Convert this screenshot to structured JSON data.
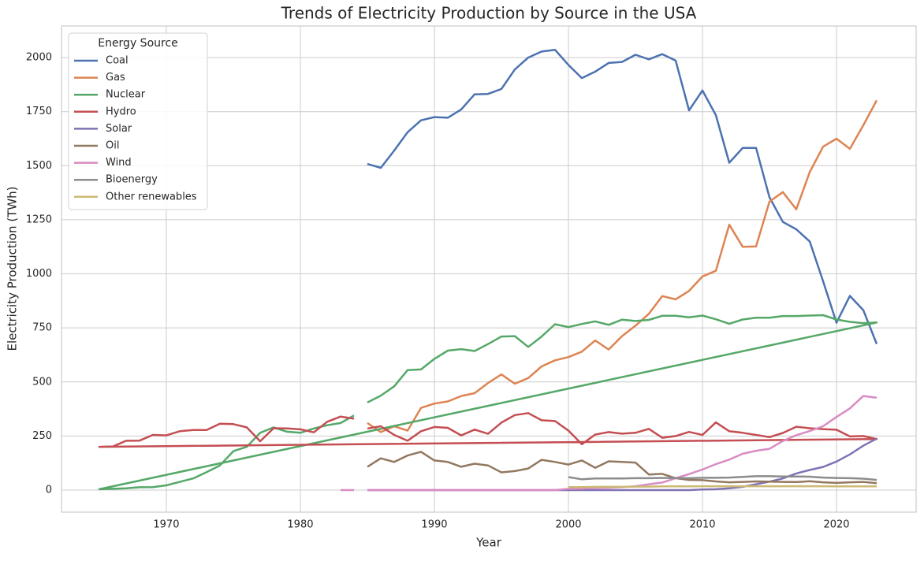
{
  "chart_data": {
    "type": "line",
    "title": "Trends of Electricity Production by Source in the USA",
    "x_label": "Year",
    "y_label": "Electricity Production (TWh)",
    "legend_title": "Energy Source",
    "legend_position": "upper left",
    "grid": true,
    "xlim": [
      1962.18,
      2025.94
    ],
    "ylim": [
      -102,
      2146
    ],
    "xticks": [
      1970,
      1980,
      1990,
      2000,
      2010,
      2020
    ],
    "yticks": [
      0,
      250,
      500,
      750,
      1000,
      1250,
      1500,
      1750,
      2000
    ],
    "x": [
      1985,
      1986,
      1987,
      1988,
      1989,
      1990,
      1991,
      1992,
      1993,
      1994,
      1995,
      1996,
      1997,
      1998,
      1999,
      2000,
      2001,
      2002,
      2003,
      2004,
      2005,
      2006,
      2007,
      2008,
      2009,
      2010,
      2011,
      2012,
      2013,
      2014,
      2015,
      2016,
      2017,
      2018,
      2019,
      2020,
      2021,
      2022,
      2023,
      1965,
      1966,
      1967,
      1968,
      1969,
      1970,
      1971,
      1972,
      1973,
      1974,
      1975,
      1976,
      1977,
      1978,
      1979,
      1980,
      1981,
      1982,
      1983,
      1984
    ],
    "series": [
      {
        "name": "Coal",
        "color": "#4c72b0",
        "values": [
          1508,
          1490,
          1570,
          1655,
          1710,
          1725,
          1722,
          1760,
          1830,
          1832,
          1855,
          1945,
          2000,
          2028,
          2036,
          1966,
          1905,
          1935,
          1975,
          1980,
          2013,
          1992,
          2016,
          1986,
          1756,
          1848,
          1734,
          1514,
          1582,
          1582,
          1354,
          1240,
          1206,
          1150,
          966,
          774,
          898,
          832,
          676,
          null,
          null,
          null,
          null,
          null,
          null,
          null,
          null,
          null,
          null,
          null,
          null,
          null,
          null,
          null,
          null,
          null,
          null,
          null,
          null
        ]
      },
      {
        "name": "Gas",
        "color": "#dd8452",
        "values": [
          310,
          268,
          295,
          275,
          380,
          400,
          410,
          435,
          448,
          495,
          535,
          492,
          518,
          572,
          600,
          615,
          640,
          692,
          650,
          712,
          760,
          815,
          897,
          882,
          921,
          988,
          1014,
          1227,
          1125,
          1127,
          1334,
          1378,
          1298,
          1470,
          1588,
          1625,
          1578,
          1687,
          1802,
          null,
          null,
          null,
          null,
          null,
          null,
          null,
          null,
          null,
          null,
          null,
          null,
          null,
          null,
          null,
          null,
          null,
          null,
          null,
          null
        ]
      },
      {
        "name": "Nuclear",
        "color": "#55a868",
        "values": [
          405,
          437,
          480,
          555,
          558,
          607,
          645,
          652,
          643,
          675,
          710,
          712,
          662,
          710,
          767,
          754,
          768,
          780,
          764,
          788,
          782,
          787,
          806,
          806,
          799,
          807,
          790,
          769,
          789,
          797,
          797,
          805,
          805,
          807,
          809,
          789,
          778,
          772,
          775,
          4,
          6,
          8,
          13,
          14,
          22,
          38,
          54,
          83,
          114,
          180,
          200,
          265,
          290,
          270,
          265,
          285,
          300,
          310,
          345
        ]
      },
      {
        "name": "Hydro",
        "color": "#c44e52",
        "values": [
          285,
          295,
          255,
          228,
          272,
          292,
          288,
          253,
          280,
          260,
          312,
          347,
          356,
          323,
          319,
          275,
          212,
          257,
          268,
          261,
          265,
          283,
          242,
          250,
          269,
          255,
          313,
          272,
          265,
          255,
          245,
          264,
          293,
          286,
          282,
          279,
          248,
          250,
          236,
          200,
          201,
          228,
          229,
          255,
          253,
          272,
          278,
          278,
          307,
          305,
          290,
          226,
          286,
          285,
          281,
          267,
          316,
          340,
          330
        ]
      },
      {
        "name": "Solar",
        "color": "#8172b3",
        "values": [
          0,
          0,
          0,
          0,
          0,
          0,
          0,
          0,
          0,
          0,
          0,
          0,
          0,
          0,
          0,
          0,
          0,
          0,
          0,
          0,
          0,
          0,
          0,
          0,
          0,
          3,
          4,
          8,
          15,
          27,
          39,
          54,
          77,
          93,
          107,
          132,
          165,
          205,
          238,
          null,
          null,
          null,
          null,
          null,
          null,
          null,
          null,
          null,
          null,
          null,
          null,
          null,
          null,
          null,
          null,
          null,
          null,
          null,
          null
        ]
      },
      {
        "name": "Oil",
        "color": "#937860",
        "values": [
          108,
          147,
          130,
          160,
          177,
          137,
          130,
          108,
          122,
          114,
          82,
          88,
          100,
          140,
          130,
          118,
          137,
          103,
          133,
          130,
          127,
          72,
          75,
          55,
          47,
          46,
          40,
          36,
          38,
          40,
          39,
          38,
          37,
          41,
          36,
          33,
          36,
          38,
          32,
          null,
          null,
          null,
          null,
          null,
          null,
          null,
          null,
          null,
          null,
          null,
          null,
          null,
          null,
          null,
          null,
          null,
          null,
          null,
          null
        ]
      },
      {
        "name": "Wind",
        "color": "#da8bc3",
        "values": [
          0,
          0,
          0,
          0,
          0,
          0,
          0,
          0,
          0,
          0,
          0,
          0,
          0,
          0,
          0,
          6,
          7,
          10,
          11,
          14,
          18,
          27,
          35,
          55,
          74,
          95,
          120,
          141,
          168,
          182,
          191,
          227,
          254,
          273,
          295,
          338,
          378,
          435,
          427,
          null,
          null,
          null,
          null,
          null,
          null,
          null,
          null,
          null,
          null,
          null,
          null,
          null,
          null,
          null,
          null,
          null,
          null,
          0,
          0
        ]
      },
      {
        "name": "Bioenergy",
        "color": "#8c8c8c",
        "values": [
          null,
          null,
          null,
          null,
          null,
          null,
          null,
          null,
          null,
          null,
          null,
          null,
          null,
          null,
          null,
          60,
          50,
          54,
          54,
          54,
          55,
          55,
          56,
          56,
          55,
          57,
          57,
          58,
          61,
          64,
          64,
          63,
          63,
          62,
          58,
          56,
          55,
          53,
          47,
          null,
          null,
          null,
          null,
          null,
          null,
          null,
          null,
          null,
          null,
          null,
          null,
          null,
          null,
          null,
          null,
          null,
          null,
          null,
          null
        ]
      },
      {
        "name": "Other renewables",
        "color": "#ccb974",
        "values": [
          null,
          null,
          null,
          null,
          null,
          null,
          null,
          null,
          null,
          null,
          null,
          null,
          null,
          null,
          null,
          14,
          14,
          15,
          15,
          15,
          16,
          16,
          17,
          17,
          17,
          18,
          18,
          18,
          18,
          18,
          18,
          18,
          18,
          18,
          18,
          17,
          17,
          17,
          17,
          null,
          null,
          null,
          null,
          null,
          null,
          null,
          null,
          null,
          null,
          null,
          null,
          null,
          null,
          null,
          null,
          null,
          null,
          null,
          null
        ]
      }
    ]
  }
}
